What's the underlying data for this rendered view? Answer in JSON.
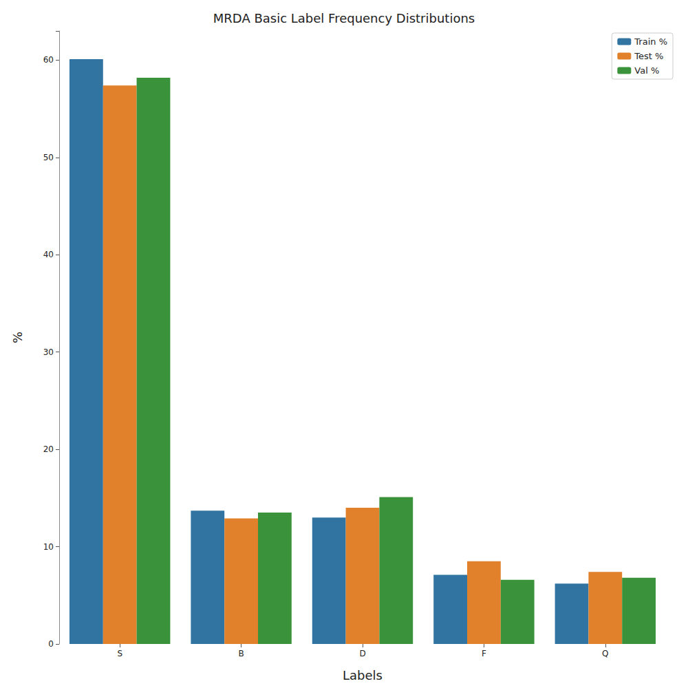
{
  "chart_data": {
    "type": "bar",
    "title": "MRDA Basic Label Frequency Distributions",
    "x_label": "Labels",
    "y_label": "%",
    "categories": [
      "S",
      "B",
      "D",
      "F",
      "Q"
    ],
    "series": [
      {
        "name": "Train %",
        "color": "#3274a1",
        "values": [
          60.1,
          13.7,
          13.0,
          7.1,
          6.2
        ]
      },
      {
        "name": "Test %",
        "color": "#e1812c",
        "values": [
          57.4,
          12.9,
          14.0,
          8.5,
          7.4
        ]
      },
      {
        "name": "Val %",
        "color": "#3a923a",
        "values": [
          58.2,
          13.5,
          15.1,
          6.6,
          6.8
        ]
      }
    ],
    "ylim": [
      0,
      63
    ],
    "yticks": [
      0,
      10,
      20,
      30,
      40,
      50,
      60
    ],
    "grid": false,
    "legend": "upper right"
  }
}
